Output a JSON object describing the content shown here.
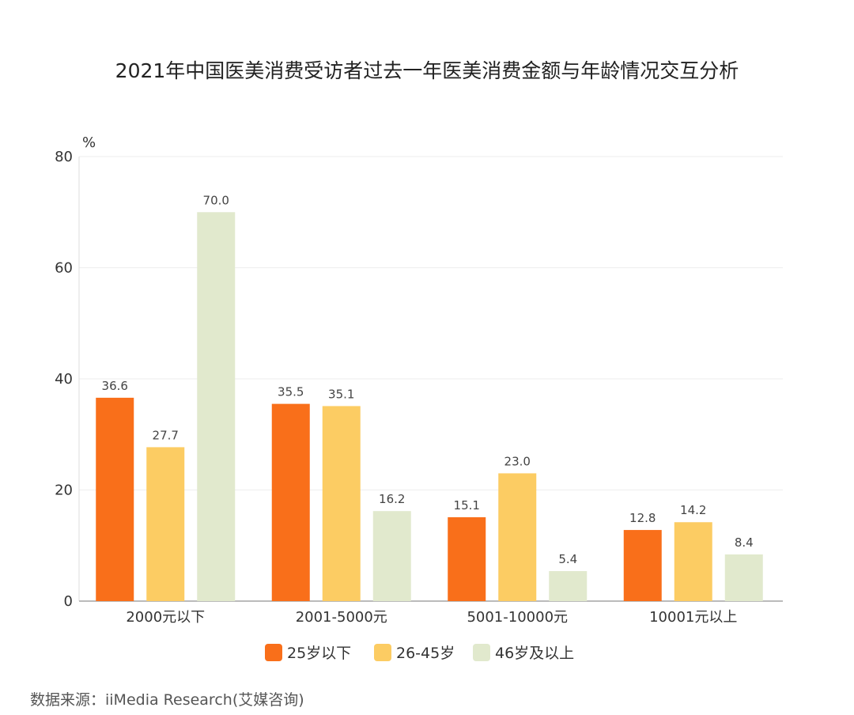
{
  "chart_data": {
    "type": "bar",
    "title": "2021年中国医美消费受访者过去一年医美消费金额与年龄情况交互分析",
    "ylabel": "%",
    "xlabel": "",
    "ylim": [
      0,
      80
    ],
    "yticks": [
      0,
      20,
      40,
      60,
      80
    ],
    "grid": true,
    "legend_position": "bottom",
    "categories": [
      "2000元以下",
      "2001-5000元",
      "5001-10000元",
      "10001元以上"
    ],
    "series": [
      {
        "name": "25岁以下",
        "color": "#f96f1a",
        "values": [
          36.6,
          35.5,
          15.1,
          12.8
        ]
      },
      {
        "name": "26-45岁",
        "color": "#fccc63",
        "values": [
          27.7,
          35.1,
          23.0,
          14.2
        ]
      },
      {
        "name": "46岁及以上",
        "color": "#e1e9cd",
        "values": [
          70.0,
          16.2,
          5.4,
          8.4
        ]
      }
    ],
    "source": "数据来源：iiMedia Research(艾媒咨询)"
  }
}
